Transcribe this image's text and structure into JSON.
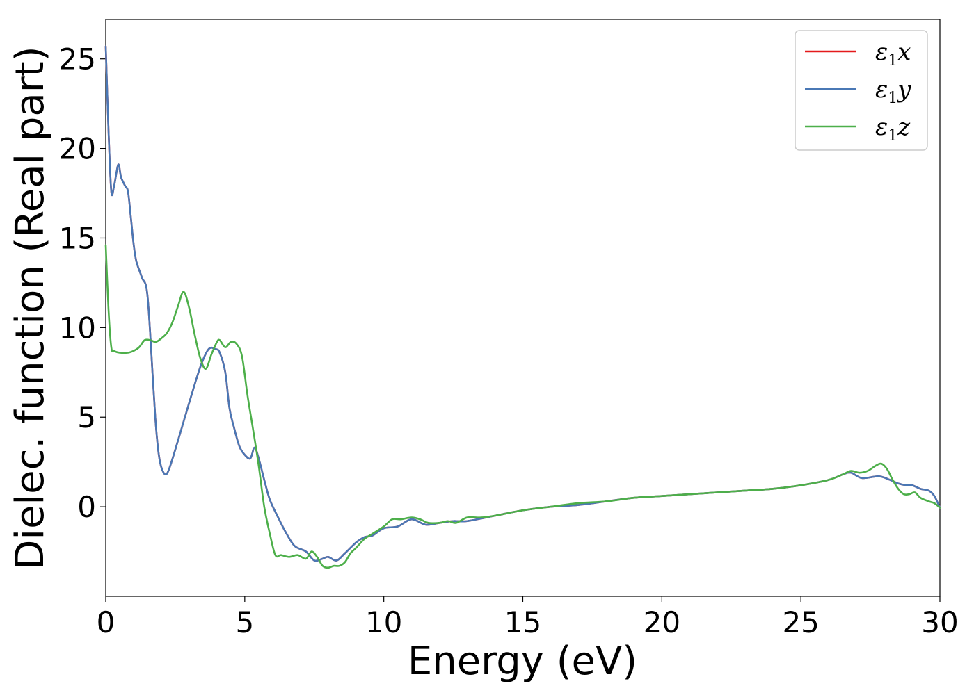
{
  "chart_data": {
    "type": "line",
    "xlabel": "Energy (eV)",
    "ylabel": "Dielec. function (Real part)",
    "xlim": [
      0,
      30
    ],
    "ylim": [
      -5,
      27.2
    ],
    "xticks": [
      0,
      5,
      10,
      15,
      20,
      25,
      30
    ],
    "yticks": [
      0,
      5,
      10,
      15,
      20,
      25
    ],
    "grid": false,
    "legend_position": "top-right",
    "series": [
      {
        "name": "ε1x",
        "legend_base": "ε",
        "legend_sub": "1",
        "legend_var": "x",
        "color": "#e41a1c",
        "x": [
          0,
          0.1,
          0.2,
          0.3,
          0.45,
          0.55,
          0.7,
          0.8,
          0.9,
          1.0,
          1.1,
          1.3,
          1.5,
          1.7,
          1.8,
          1.9,
          2.0,
          2.15,
          2.3,
          2.6,
          3.0,
          3.4,
          3.7,
          3.95,
          4.1,
          4.3,
          4.45,
          4.6,
          4.8,
          5.0,
          5.2,
          5.35,
          5.5,
          5.7,
          5.9,
          6.2,
          6.5,
          6.8,
          7.2,
          7.5,
          7.8,
          8.0,
          8.3,
          8.6,
          9.0,
          9.3,
          9.6,
          10.0,
          10.5,
          11.0,
          11.5,
          12.0,
          12.5,
          13.0,
          14.0,
          15.0,
          16.0,
          17.0,
          18.0,
          19.0,
          20.0,
          21.0,
          22.0,
          23.0,
          24.0,
          25.0,
          26.0,
          26.5,
          26.8,
          27.2,
          27.8,
          28.2,
          28.5,
          28.8,
          29.0,
          29.3,
          29.6,
          29.8,
          30.0
        ],
        "y": [
          25.7,
          21.0,
          17.6,
          17.9,
          19.1,
          18.4,
          17.9,
          17.6,
          16.2,
          14.7,
          13.7,
          12.8,
          11.8,
          7.0,
          4.6,
          3.0,
          2.2,
          1.8,
          2.2,
          3.7,
          5.8,
          7.8,
          8.8,
          8.8,
          8.6,
          7.5,
          5.5,
          4.5,
          3.4,
          2.9,
          2.7,
          3.3,
          2.7,
          1.5,
          0.4,
          -0.6,
          -1.5,
          -2.2,
          -2.5,
          -3.0,
          -2.9,
          -2.8,
          -3.0,
          -2.6,
          -2.0,
          -1.7,
          -1.6,
          -1.2,
          -1.1,
          -0.7,
          -1.0,
          -0.9,
          -0.8,
          -0.8,
          -0.5,
          -0.2,
          0.0,
          0.1,
          0.3,
          0.5,
          0.6,
          0.7,
          0.8,
          0.9,
          1.0,
          1.2,
          1.5,
          1.8,
          1.9,
          1.6,
          1.7,
          1.5,
          1.3,
          1.2,
          1.2,
          1.0,
          0.9,
          0.6,
          -0.05
        ]
      },
      {
        "name": "ε1y",
        "legend_base": "ε",
        "legend_sub": "1",
        "legend_var": "y",
        "color": "#4a78b5",
        "x": [
          0,
          0.1,
          0.2,
          0.3,
          0.45,
          0.55,
          0.7,
          0.8,
          0.9,
          1.0,
          1.1,
          1.3,
          1.5,
          1.7,
          1.8,
          1.9,
          2.0,
          2.15,
          2.3,
          2.6,
          3.0,
          3.4,
          3.7,
          3.95,
          4.1,
          4.3,
          4.45,
          4.6,
          4.8,
          5.0,
          5.2,
          5.35,
          5.5,
          5.7,
          5.9,
          6.2,
          6.5,
          6.8,
          7.2,
          7.5,
          7.8,
          8.0,
          8.3,
          8.6,
          9.0,
          9.3,
          9.6,
          10.0,
          10.5,
          11.0,
          11.5,
          12.0,
          12.5,
          13.0,
          14.0,
          15.0,
          16.0,
          17.0,
          18.0,
          19.0,
          20.0,
          21.0,
          22.0,
          23.0,
          24.0,
          25.0,
          26.0,
          26.5,
          26.8,
          27.2,
          27.8,
          28.2,
          28.5,
          28.8,
          29.0,
          29.3,
          29.6,
          29.8,
          30.0
        ],
        "y": [
          25.7,
          21.0,
          17.6,
          17.9,
          19.1,
          18.4,
          17.9,
          17.6,
          16.2,
          14.7,
          13.7,
          12.8,
          11.8,
          7.0,
          4.6,
          3.0,
          2.2,
          1.8,
          2.2,
          3.7,
          5.8,
          7.8,
          8.8,
          8.8,
          8.6,
          7.5,
          5.5,
          4.5,
          3.4,
          2.9,
          2.7,
          3.3,
          2.7,
          1.5,
          0.4,
          -0.6,
          -1.5,
          -2.2,
          -2.5,
          -3.0,
          -2.9,
          -2.8,
          -3.0,
          -2.6,
          -2.0,
          -1.7,
          -1.6,
          -1.2,
          -1.1,
          -0.7,
          -1.0,
          -0.9,
          -0.8,
          -0.8,
          -0.5,
          -0.2,
          0.0,
          0.1,
          0.3,
          0.5,
          0.6,
          0.7,
          0.8,
          0.9,
          1.0,
          1.2,
          1.5,
          1.8,
          1.9,
          1.6,
          1.7,
          1.5,
          1.3,
          1.2,
          1.2,
          1.0,
          0.9,
          0.6,
          -0.05
        ]
      },
      {
        "name": "ε1z",
        "legend_base": "ε",
        "legend_sub": "1",
        "legend_var": "z",
        "color": "#4daf4a",
        "x": [
          0,
          0.1,
          0.2,
          0.3,
          0.5,
          0.8,
          1.0,
          1.2,
          1.4,
          1.6,
          1.8,
          2.0,
          2.2,
          2.4,
          2.6,
          2.8,
          3.0,
          3.2,
          3.4,
          3.6,
          3.8,
          4.0,
          4.1,
          4.3,
          4.5,
          4.7,
          4.9,
          5.1,
          5.3,
          5.5,
          5.7,
          5.9,
          6.1,
          6.3,
          6.6,
          6.9,
          7.2,
          7.4,
          7.6,
          7.8,
          8.0,
          8.2,
          8.4,
          8.6,
          8.8,
          9.0,
          9.3,
          9.6,
          10.0,
          10.3,
          10.6,
          11.0,
          11.3,
          11.6,
          12.0,
          12.3,
          12.6,
          13.0,
          13.5,
          14.0,
          15.0,
          16.0,
          17.0,
          18.0,
          19.0,
          20.0,
          21.0,
          22.0,
          23.0,
          24.0,
          25.0,
          26.0,
          26.5,
          26.8,
          27.1,
          27.4,
          27.7,
          27.9,
          28.1,
          28.3,
          28.5,
          28.7,
          28.9,
          29.1,
          29.3,
          29.6,
          29.8,
          30.0
        ],
        "y": [
          14.6,
          11.0,
          8.9,
          8.7,
          8.6,
          8.6,
          8.7,
          8.9,
          9.3,
          9.3,
          9.2,
          9.4,
          9.7,
          10.3,
          11.2,
          12.0,
          11.1,
          9.6,
          8.3,
          7.7,
          8.5,
          9.2,
          9.3,
          8.9,
          9.2,
          9.1,
          8.4,
          6.2,
          4.3,
          2.3,
          0.0,
          -1.5,
          -2.7,
          -2.7,
          -2.8,
          -2.7,
          -2.9,
          -2.5,
          -2.8,
          -3.3,
          -3.4,
          -3.3,
          -3.3,
          -3.1,
          -2.6,
          -2.3,
          -1.8,
          -1.5,
          -1.1,
          -0.7,
          -0.7,
          -0.6,
          -0.7,
          -0.9,
          -0.9,
          -0.8,
          -0.9,
          -0.6,
          -0.6,
          -0.5,
          -0.2,
          0.0,
          0.2,
          0.3,
          0.5,
          0.6,
          0.7,
          0.8,
          0.9,
          1.0,
          1.2,
          1.5,
          1.8,
          2.0,
          1.9,
          2.0,
          2.3,
          2.4,
          2.1,
          1.5,
          1.0,
          0.7,
          0.7,
          0.8,
          0.5,
          0.3,
          0.2,
          -0.05
        ]
      }
    ]
  }
}
